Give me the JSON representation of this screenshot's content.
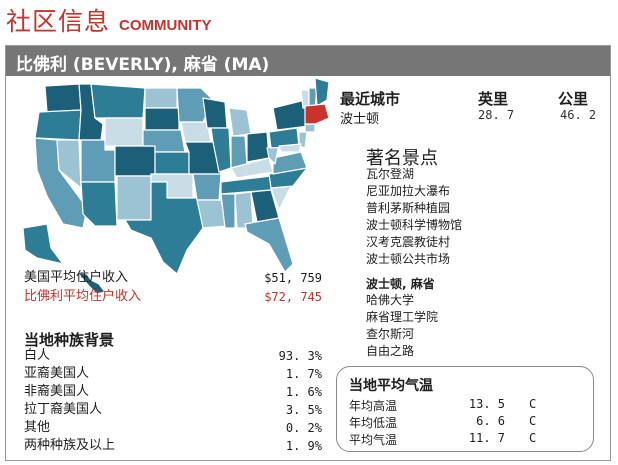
{
  "header": {
    "title_cn": "社区信息",
    "title_en": "COMMUNITY"
  },
  "banner": {
    "title": "比佛利 (BEVERLY), 麻省 (MA)"
  },
  "map": {
    "highlight_color": "#c8332c",
    "palette": [
      "#1b5f79",
      "#2d7d96",
      "#5e9db5",
      "#9cc3d4",
      "#c9dde7"
    ]
  },
  "income": [
    {
      "label": "美国平均住户收入",
      "value": "$51, 759",
      "highlight": false
    },
    {
      "label": "比佛利平均住户收入",
      "value": "$72, 745",
      "highlight": true
    }
  ],
  "ethnicity": {
    "title": "当地种族背景",
    "rows": [
      {
        "label": "白人",
        "value": "93. 3%"
      },
      {
        "label": "亚裔美国人",
        "value": "1. 7%"
      },
      {
        "label": "非裔美国人",
        "value": "1. 6%"
      },
      {
        "label": "拉丁裔美国人",
        "value": "3. 5%"
      },
      {
        "label": "其他",
        "value": "0. 2%"
      },
      {
        "label": "两种种族及以上",
        "value": "1. 9%"
      }
    ]
  },
  "nearest_city": {
    "title": "最近城市",
    "col_miles": "英里",
    "col_km": "公里",
    "name": "波士顿",
    "miles": "28. 7",
    "km": "46. 2"
  },
  "attractions": {
    "title": "著名景点",
    "items": [
      "瓦尔登湖",
      "尼亚加拉大瀑布",
      "普利茅斯种植园",
      "波士顿科学博物馆",
      "汉考克震教徒村",
      "波士顿公共市场"
    ]
  },
  "boston": {
    "title": "波士顿, 麻省",
    "items": [
      "哈佛大学",
      "麻省理工学院",
      "查尔斯河",
      "自由之路"
    ]
  },
  "temperature": {
    "title": "当地平均气温",
    "rows": [
      {
        "label": "年均高温",
        "value": "13. 5",
        "unit": "C"
      },
      {
        "label": "年均低温",
        "value": "6. 6",
        "unit": "C"
      },
      {
        "label": "平均气温",
        "value": "11. 7",
        "unit": "C"
      }
    ]
  }
}
